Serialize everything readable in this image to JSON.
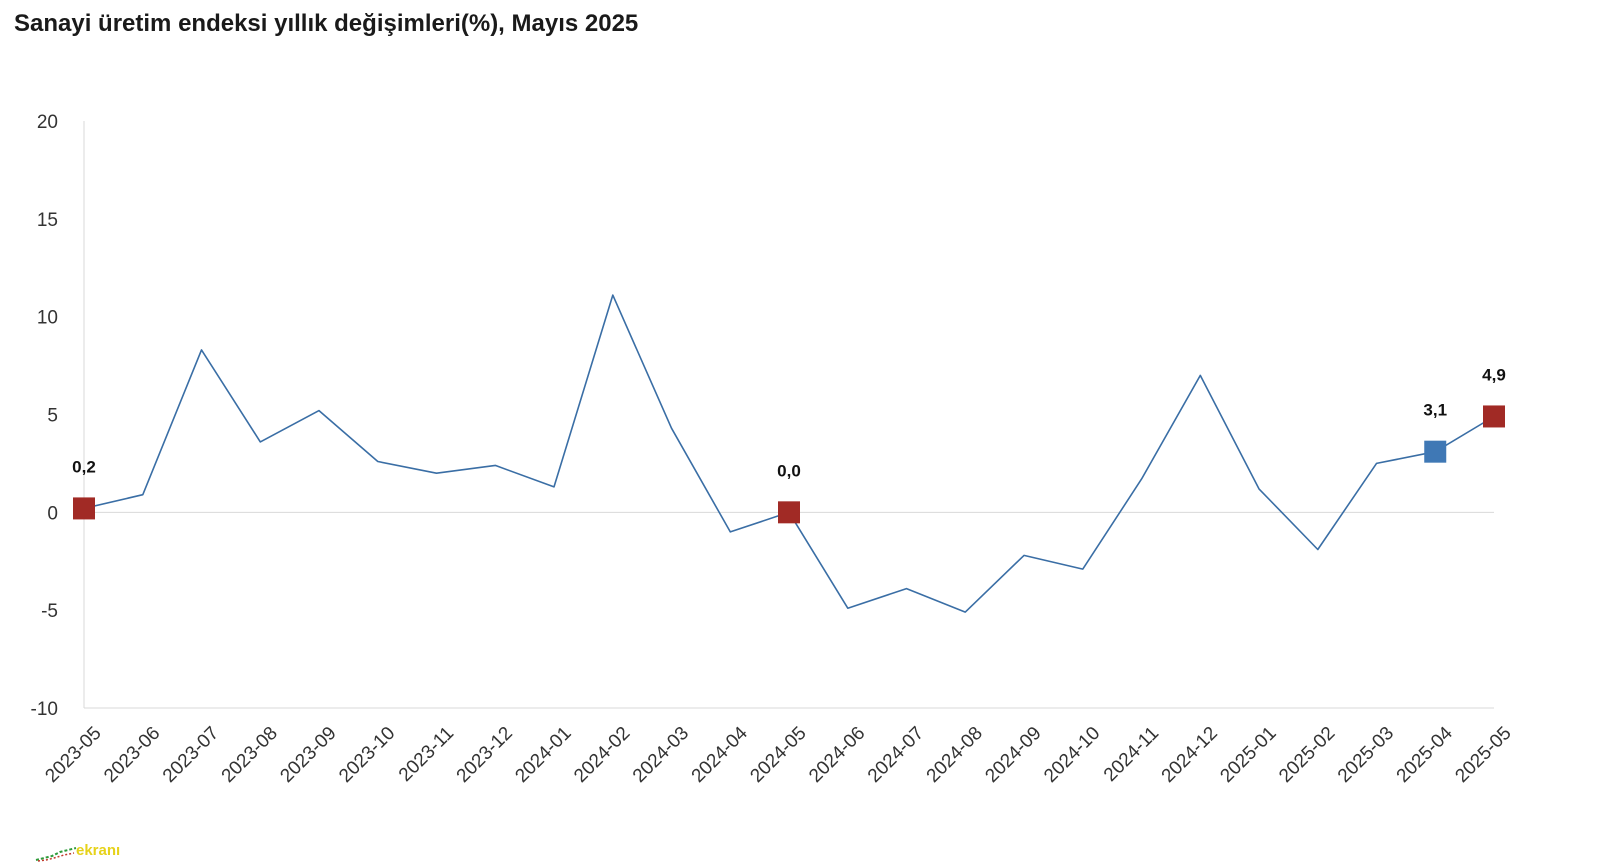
{
  "chart_data": {
    "type": "line",
    "title": "Sanayi üretim endeksi yıllık değişimleri(%), Mayıs 2025",
    "categories": [
      "2023-05",
      "2023-06",
      "2023-07",
      "2023-08",
      "2023-09",
      "2023-10",
      "2023-11",
      "2023-12",
      "2024-01",
      "2024-02",
      "2024-03",
      "2024-04",
      "2024-05",
      "2024-06",
      "2024-07",
      "2024-08",
      "2024-09",
      "2024-10",
      "2024-11",
      "2024-12",
      "2025-01",
      "2025-02",
      "2025-03",
      "2025-04",
      "2025-05"
    ],
    "series": [
      {
        "values": [
          0.2,
          0.9,
          8.3,
          3.6,
          5.2,
          2.6,
          2.0,
          2.4,
          1.3,
          11.1,
          4.3,
          -1.0,
          0.0,
          -4.9,
          -3.9,
          -5.1,
          -2.2,
          -2.9,
          1.7,
          7.0,
          1.2,
          -1.9,
          2.5,
          3.1,
          4.9
        ],
        "color": "#3a6ea5"
      }
    ],
    "ylim": [
      -10,
      20
    ],
    "yticks": [
      -10,
      -5,
      0,
      5,
      10,
      15,
      20
    ],
    "ytick_labels": [
      "-10",
      "-5",
      "0",
      "5",
      "10",
      "15",
      "20"
    ],
    "highlighted_points": [
      {
        "index": 0,
        "label": "0,2",
        "color": "#a12a25"
      },
      {
        "index": 12,
        "label": "0,0",
        "color": "#a12a25"
      },
      {
        "index": 23,
        "label": "3,1",
        "color": "#3f78b5"
      },
      {
        "index": 24,
        "label": "4,9",
        "color": "#a12a25"
      }
    ],
    "grid": false,
    "zero_line": true
  },
  "watermark": {
    "text": "ekranı"
  }
}
